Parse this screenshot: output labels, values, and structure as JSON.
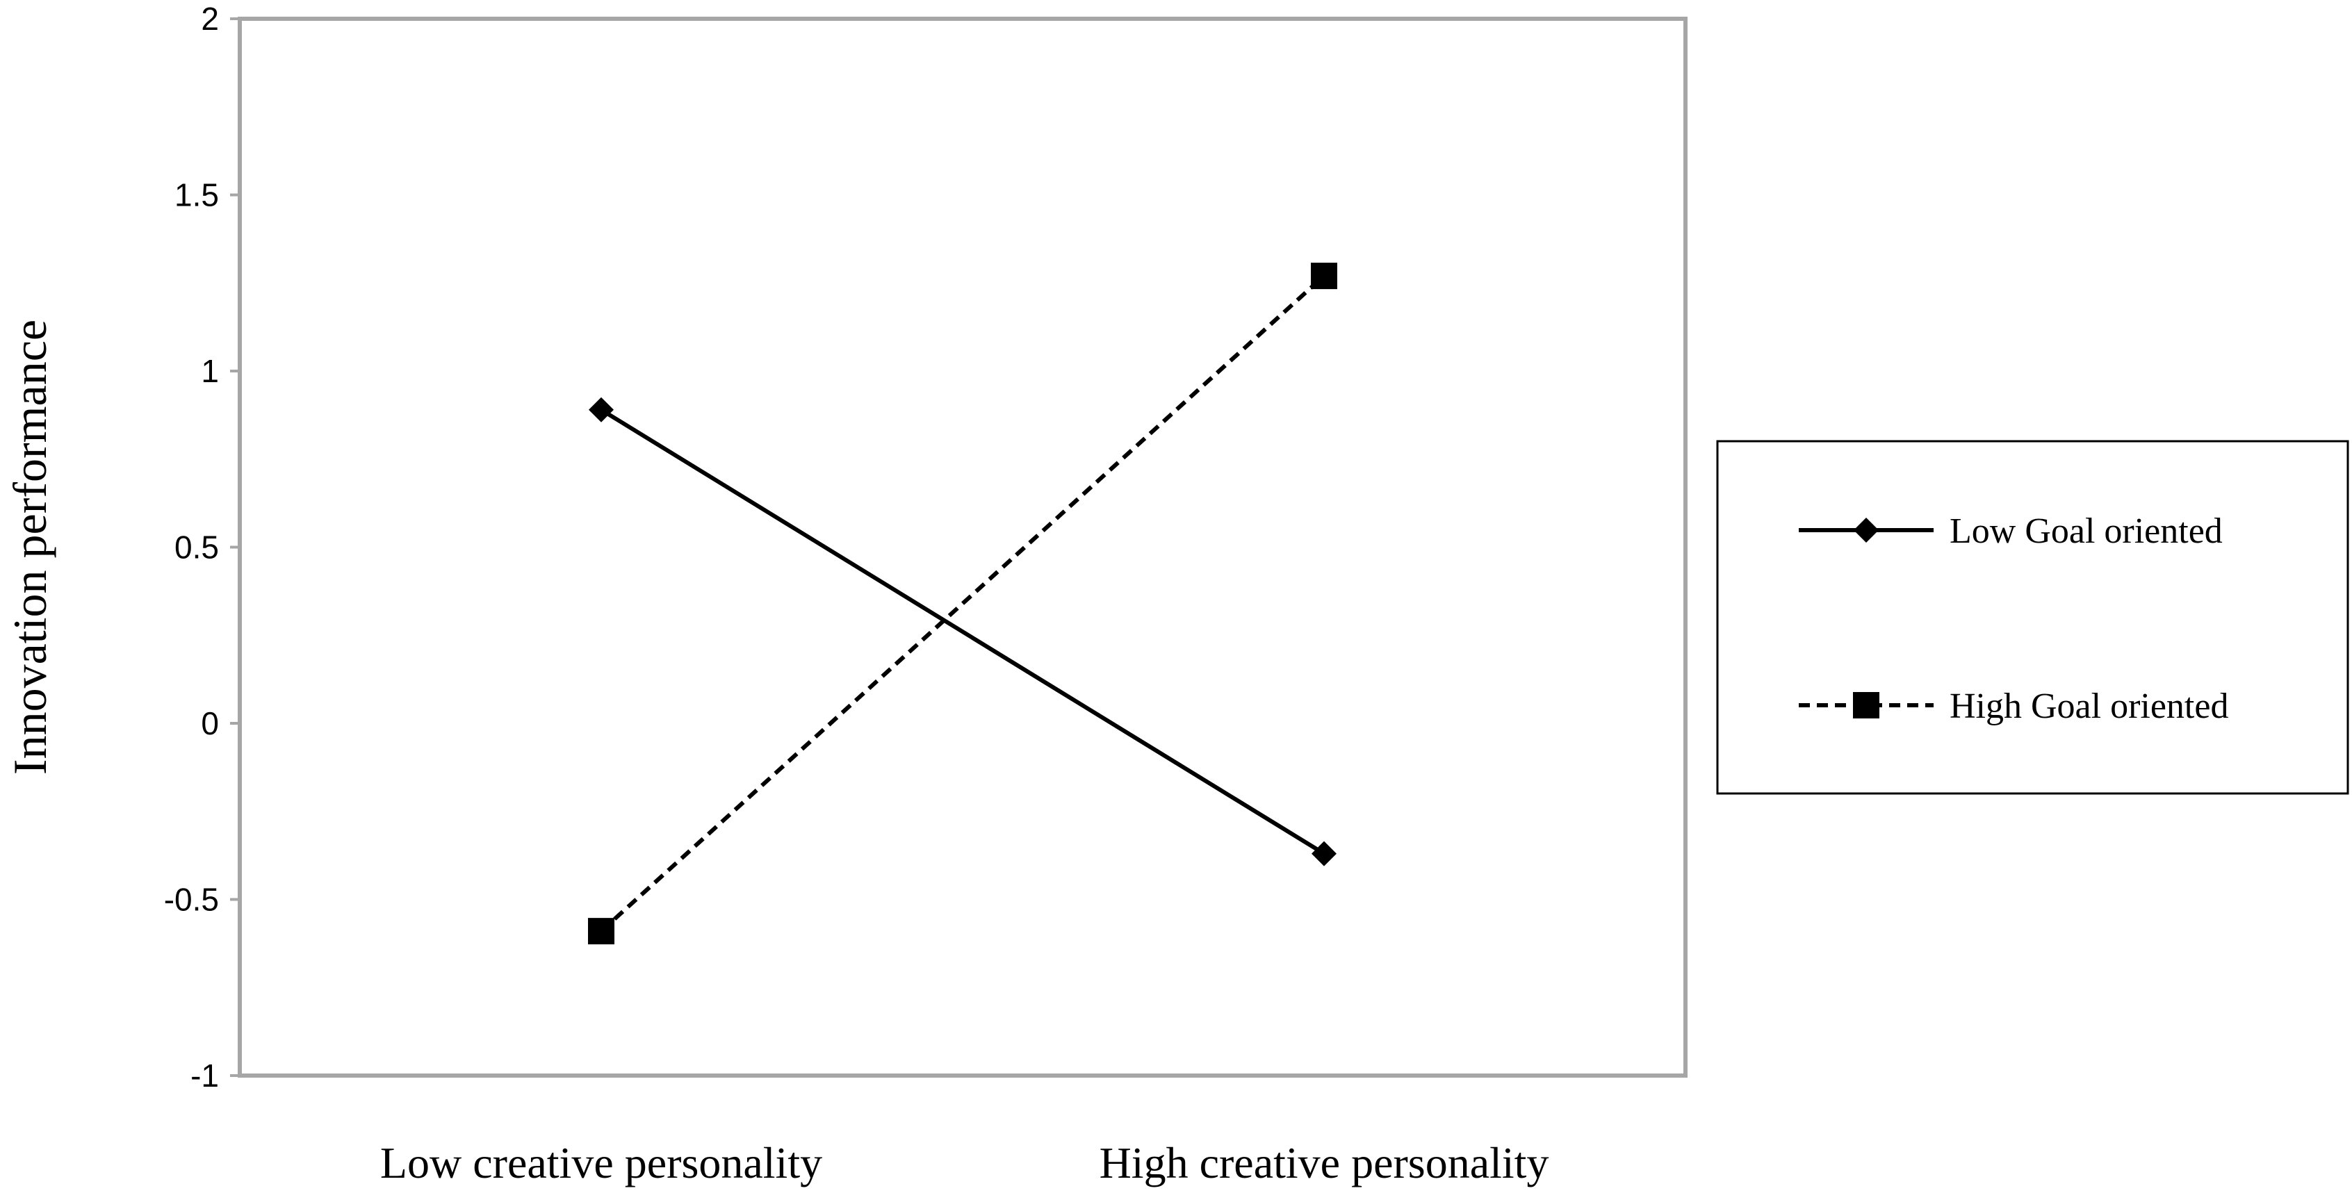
{
  "chart_data": {
    "type": "line",
    "title": "",
    "ylabel": "Innovation performance",
    "xlabel": "",
    "categories": [
      "Low creative personality",
      "High creative personality"
    ],
    "ylim": [
      -1,
      2
    ],
    "yticks": [
      -1,
      -0.5,
      0,
      0.5,
      1,
      1.5,
      2
    ],
    "ytick_labels": [
      "-1",
      "-0.5",
      "0",
      "0.5",
      "1",
      "1.5",
      "2"
    ],
    "grid": false,
    "legend_position": "right",
    "series": [
      {
        "name": "Low Goal oriented",
        "values": [
          0.89,
          -0.37
        ],
        "line_style": "solid",
        "marker": "diamond",
        "color": "#000000"
      },
      {
        "name": "High Goal oriented",
        "values": [
          -0.59,
          1.27
        ],
        "line_style": "dashed",
        "marker": "square",
        "color": "#000000"
      }
    ]
  },
  "colors": {
    "axis": "#a6a6a6",
    "ink": "#000000",
    "legend_border": "#000000"
  }
}
